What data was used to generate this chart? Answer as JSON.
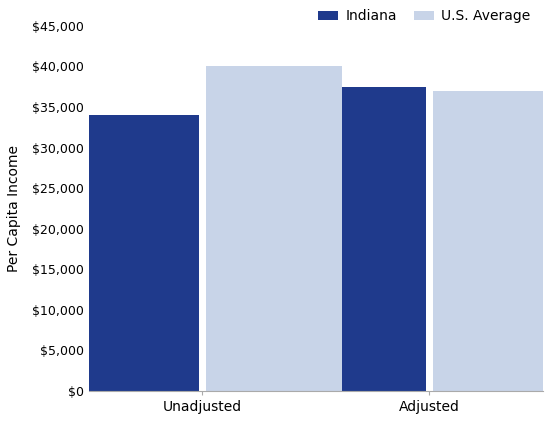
{
  "categories": [
    "Unadjusted",
    "Adjusted"
  ],
  "indiana_values": [
    34000,
    37500
  ],
  "us_avg_values": [
    40000,
    37000
  ],
  "indiana_color": "#1F3A8C",
  "us_avg_color": "#C8D4E8",
  "ylabel": "Per Capita Income",
  "ylim": [
    0,
    45000
  ],
  "yticks": [
    0,
    5000,
    10000,
    15000,
    20000,
    25000,
    30000,
    35000,
    40000,
    45000
  ],
  "legend_labels": [
    "Indiana",
    "U.S. Average"
  ],
  "bar_width": 0.42,
  "x_positions": [
    0.35,
    1.05
  ],
  "xlim": [
    0.0,
    1.4
  ],
  "background_color": "#ffffff"
}
